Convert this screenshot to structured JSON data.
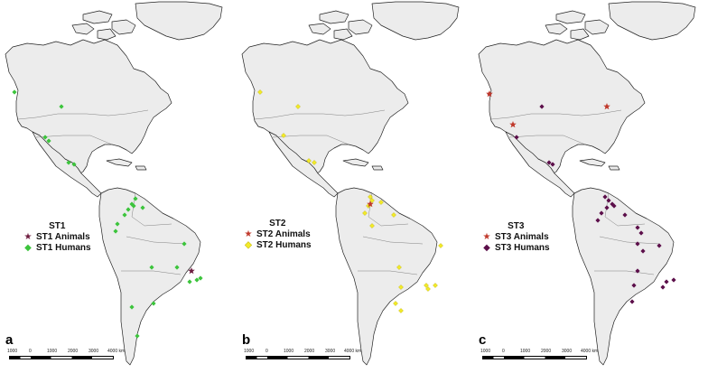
{
  "colors": {
    "land": "#ececec",
    "coast": "#222222",
    "green": "#3cc43c",
    "yellow": "#f2ea2a",
    "purple": "#5c0f4a",
    "red_star": "#c0392b",
    "maroon_star": "#6e1c3f"
  },
  "panels": [
    {
      "letter": "a",
      "legend": {
        "title": "ST1",
        "animals_label": "ST1 Animals",
        "humans_label": "ST1 Humans",
        "animals_icon": "star-icon",
        "humans_icon": "diamond-icon"
      },
      "scale": {
        "labels": [
          "1000",
          "0",
          "1000",
          "2000",
          "3000",
          "4000 km"
        ]
      }
    },
    {
      "letter": "b",
      "legend": {
        "title": "ST2",
        "animals_label": "ST2 Animals",
        "humans_label": "ST2 Humans",
        "animals_icon": "star-icon",
        "humans_icon": "diamond-icon"
      },
      "scale": {
        "labels": [
          "1000",
          "0",
          "1000",
          "2000",
          "3000",
          "4000 km"
        ]
      }
    },
    {
      "letter": "c",
      "legend": {
        "title": "ST3",
        "animals_label": "ST3 Animals",
        "humans_label": "ST3 Humans",
        "animals_icon": "star-icon",
        "humans_icon": "diamond-icon"
      },
      "scale": {
        "labels": [
          "1000",
          "0",
          "1000",
          "2000",
          "3000",
          "4000 km"
        ]
      }
    }
  ]
}
